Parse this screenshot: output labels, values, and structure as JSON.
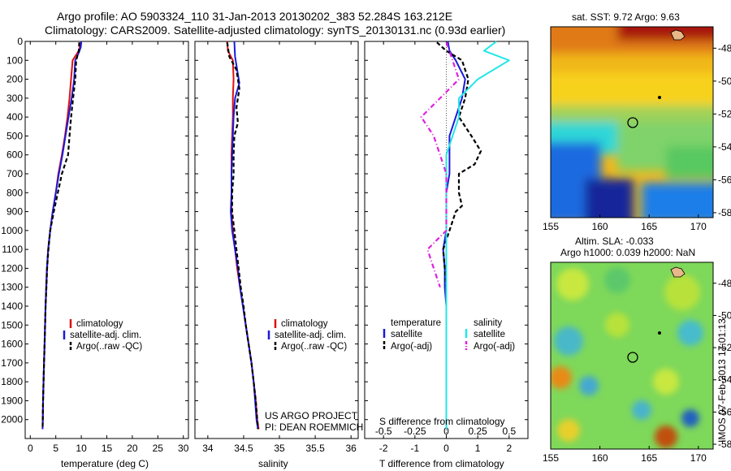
{
  "header": {
    "line1": "Argo profile: AO 5903324_110 31-Jan-2013 20130202_383 52.284S 163.212E",
    "line2": "Climatology: CARS2009. Satellite-adjusted climatology: synTS_20130131.nc (0.93d earlier)"
  },
  "colors": {
    "climatology": "#dd1111",
    "satellite": "#1a1adb",
    "argo": "#000000",
    "salinity_satellite": "#22e6e6",
    "salinity_argo": "#dd22dd"
  },
  "legend_tp": {
    "clim": "climatology",
    "sat": "satellite-adj. clim.",
    "argo": "Argo(..raw -QC)"
  },
  "legend_diff": {
    "temp_header": "temperature",
    "sal_header": "salinity",
    "sat": "satellite",
    "argo": "Argo(-adj)"
  },
  "credits": {
    "line1": "US ARGO PROJECT",
    "line2": "PI: DEAN ROEMMICH"
  },
  "maps": {
    "sst_title": "sat. SST: 9.72 Argo: 9.63",
    "sla_title1": "Altim. SLA: -0.033",
    "sla_title2": "Argo h1000: 0.039 h2000: NaN",
    "stamp": "IMOS 07-Feb-2013 17:01:13",
    "lon_ticks": [
      "155",
      "160",
      "165",
      "170"
    ],
    "lat_ticks": [
      "-48",
      "-50",
      "-52",
      "-54",
      "-56",
      "-58"
    ]
  },
  "chart_data": [
    {
      "type": "line",
      "name": "temperature",
      "xlabel": "temperature (deg C)",
      "xlim": [
        -1,
        31
      ],
      "ylim": [
        0,
        2100
      ],
      "xticks": [
        0,
        5,
        10,
        15,
        20,
        25,
        30
      ],
      "yticks": [
        0,
        100,
        200,
        300,
        400,
        500,
        600,
        700,
        800,
        900,
        1000,
        1100,
        1200,
        1300,
        1400,
        1500,
        1600,
        1700,
        1800,
        1900,
        2000
      ],
      "yaxis_reversed": true,
      "series": [
        {
          "name": "climatology",
          "color_key": "climatology",
          "dash": "solid",
          "points": [
            [
              10.0,
              0
            ],
            [
              9.8,
              20
            ],
            [
              9.5,
              50
            ],
            [
              8.3,
              100
            ],
            [
              8.0,
              200
            ],
            [
              7.7,
              300
            ],
            [
              7.3,
              400
            ],
            [
              6.8,
              500
            ],
            [
              6.2,
              600
            ],
            [
              5.5,
              700
            ],
            [
              5.0,
              800
            ],
            [
              4.4,
              900
            ],
            [
              3.9,
              1000
            ],
            [
              3.5,
              1100
            ],
            [
              3.3,
              1200
            ],
            [
              3.15,
              1300
            ],
            [
              3.0,
              1400
            ],
            [
              2.9,
              1500
            ],
            [
              2.8,
              1600
            ],
            [
              2.7,
              1700
            ],
            [
              2.6,
              1800
            ],
            [
              2.5,
              1900
            ],
            [
              2.45,
              2000
            ],
            [
              2.4,
              2050
            ]
          ]
        },
        {
          "name": "satellite-adj. clim.",
          "color_key": "satellite",
          "dash": "solid",
          "points": [
            [
              10.0,
              0
            ],
            [
              9.9,
              30
            ],
            [
              9.5,
              60
            ],
            [
              8.8,
              100
            ],
            [
              8.6,
              200
            ],
            [
              8.1,
              300
            ],
            [
              7.5,
              400
            ],
            [
              6.9,
              500
            ],
            [
              6.3,
              600
            ],
            [
              5.6,
              700
            ],
            [
              5.0,
              800
            ],
            [
              4.4,
              900
            ],
            [
              3.9,
              1000
            ],
            [
              3.5,
              1100
            ],
            [
              3.25,
              1200
            ],
            [
              3.1,
              1300
            ],
            [
              3.0,
              1400
            ],
            [
              2.9,
              1500
            ],
            [
              2.8,
              1600
            ],
            [
              2.7,
              1700
            ],
            [
              2.6,
              1800
            ],
            [
              2.5,
              1900
            ],
            [
              2.45,
              2000
            ],
            [
              2.4,
              2050
            ]
          ]
        },
        {
          "name": "Argo(..raw -QC)",
          "color_key": "argo",
          "dash": "dash",
          "points": [
            [
              9.6,
              5
            ],
            [
              9.5,
              50
            ],
            [
              9.0,
              100
            ],
            [
              8.8,
              200
            ],
            [
              8.4,
              300
            ],
            [
              8.0,
              400
            ],
            [
              7.7,
              500
            ],
            [
              7.4,
              600
            ],
            [
              6.2,
              700
            ],
            [
              5.4,
              800
            ],
            [
              4.6,
              900
            ],
            [
              3.9,
              1000
            ],
            [
              3.55,
              1100
            ],
            [
              3.3,
              1200
            ],
            [
              3.15,
              1300
            ],
            [
              3.0,
              1400
            ],
            [
              2.9,
              1500
            ],
            [
              2.8,
              1600
            ],
            [
              2.7,
              1700
            ],
            [
              2.6,
              1800
            ],
            [
              2.5,
              1900
            ],
            [
              2.45,
              2000
            ],
            [
              2.4,
              2050
            ]
          ]
        }
      ]
    },
    {
      "type": "line",
      "name": "salinity",
      "xlabel": "salinity",
      "xlim": [
        33.82,
        36.1
      ],
      "ylim": [
        0,
        2100
      ],
      "xticks": [
        34,
        34.5,
        35,
        35.5,
        36
      ],
      "xticklabels": [
        "34",
        "34.5",
        "35",
        "35.5",
        "36"
      ],
      "yaxis_reversed": true,
      "series": [
        {
          "name": "climatology",
          "color_key": "climatology",
          "dash": "solid",
          "points": [
            [
              34.27,
              0
            ],
            [
              34.28,
              50
            ],
            [
              34.35,
              100
            ],
            [
              34.36,
              200
            ],
            [
              34.35,
              300
            ],
            [
              34.35,
              400
            ],
            [
              34.34,
              500
            ],
            [
              34.33,
              600
            ],
            [
              34.33,
              700
            ],
            [
              34.33,
              800
            ],
            [
              34.33,
              900
            ],
            [
              34.35,
              1000
            ],
            [
              34.38,
              1100
            ],
            [
              34.41,
              1200
            ],
            [
              34.45,
              1300
            ],
            [
              34.49,
              1400
            ],
            [
              34.53,
              1500
            ],
            [
              34.57,
              1600
            ],
            [
              34.61,
              1700
            ],
            [
              34.64,
              1800
            ],
            [
              34.67,
              1900
            ],
            [
              34.69,
              2000
            ],
            [
              34.71,
              2050
            ]
          ]
        },
        {
          "name": "satellite-adj. clim.",
          "color_key": "satellite",
          "dash": "solid",
          "points": [
            [
              34.37,
              0
            ],
            [
              34.38,
              80
            ],
            [
              34.41,
              150
            ],
            [
              34.44,
              220
            ],
            [
              34.38,
              300
            ],
            [
              34.36,
              400
            ],
            [
              34.35,
              500
            ],
            [
              34.34,
              600
            ],
            [
              34.33,
              700
            ],
            [
              34.33,
              800
            ],
            [
              34.32,
              900
            ],
            [
              34.34,
              1000
            ],
            [
              34.38,
              1100
            ],
            [
              34.42,
              1200
            ],
            [
              34.45,
              1300
            ],
            [
              34.49,
              1400
            ],
            [
              34.53,
              1500
            ],
            [
              34.57,
              1600
            ],
            [
              34.61,
              1700
            ],
            [
              34.64,
              1800
            ],
            [
              34.66,
              1900
            ],
            [
              34.68,
              2000
            ],
            [
              34.7,
              2050
            ]
          ]
        },
        {
          "name": "Argo(..raw -QC)",
          "color_key": "argo",
          "dash": "dash",
          "points": [
            [
              34.27,
              5
            ],
            [
              34.3,
              80
            ],
            [
              34.4,
              150
            ],
            [
              34.44,
              250
            ],
            [
              34.4,
              350
            ],
            [
              34.42,
              430
            ],
            [
              34.37,
              500
            ],
            [
              34.36,
              600
            ],
            [
              34.36,
              700
            ],
            [
              34.34,
              800
            ],
            [
              34.34,
              900
            ],
            [
              34.37,
              1000
            ],
            [
              34.4,
              1100
            ],
            [
              34.43,
              1200
            ],
            [
              34.46,
              1300
            ],
            [
              34.5,
              1400
            ],
            [
              34.53,
              1500
            ],
            [
              34.57,
              1600
            ],
            [
              34.61,
              1700
            ],
            [
              34.64,
              1800
            ],
            [
              34.67,
              1900
            ],
            [
              34.69,
              2000
            ],
            [
              34.7,
              2050
            ]
          ]
        }
      ]
    },
    {
      "type": "line",
      "name": "difference",
      "xlabel": "T difference from climatology",
      "xlabel2": "S difference from climatology",
      "xlim": [
        -2.6,
        2.6
      ],
      "ylim": [
        0,
        2100
      ],
      "xticks": [
        -2,
        -1,
        0,
        1,
        2
      ],
      "secondary_ticks": [
        -0.5,
        -0.25,
        0,
        0.25,
        0.5
      ],
      "secondary_ticklabels": [
        "-0.5",
        "-0.25",
        "0",
        "0.25",
        "0.5"
      ],
      "yaxis_reversed": true,
      "series": [
        {
          "name": "temperature satellite",
          "color_key": "satellite",
          "dash": "solid",
          "points": [
            [
              0.05,
              0
            ],
            [
              0.1,
              50
            ],
            [
              0.3,
              100
            ],
            [
              0.6,
              200
            ],
            [
              0.5,
              300
            ],
            [
              0.3,
              400
            ],
            [
              0.1,
              500
            ],
            [
              0.1,
              600
            ],
            [
              0.1,
              700
            ],
            [
              0.0,
              800
            ],
            [
              0.0,
              900
            ],
            [
              0.0,
              1000
            ],
            [
              -0.1,
              1100
            ],
            [
              -0.05,
              1200
            ],
            [
              -0.05,
              1300
            ],
            [
              0.0,
              1400
            ],
            [
              0.0,
              1500
            ],
            [
              0.0,
              1600
            ],
            [
              0.0,
              1700
            ],
            [
              0.0,
              1800
            ],
            [
              0.0,
              1900
            ],
            [
              0.0,
              2000
            ],
            [
              0.0,
              2050
            ]
          ]
        },
        {
          "name": "temperature Argo(-adj)",
          "color_key": "argo",
          "dash": "dash",
          "points": [
            [
              -0.3,
              5
            ],
            [
              0.0,
              50
            ],
            [
              0.5,
              100
            ],
            [
              0.7,
              200
            ],
            [
              0.6,
              300
            ],
            [
              0.4,
              400
            ],
            [
              0.8,
              500
            ],
            [
              1.1,
              580
            ],
            [
              0.9,
              650
            ],
            [
              0.4,
              700
            ],
            [
              0.4,
              800
            ],
            [
              0.5,
              870
            ],
            [
              0.3,
              900
            ],
            [
              0.1,
              1000
            ],
            [
              -0.1,
              1100
            ],
            [
              -0.05,
              1200
            ],
            [
              0.0,
              1300
            ]
          ]
        },
        {
          "name": "salinity satellite",
          "color_key": "salinity_satellite",
          "dash": "solid",
          "points": [
            [
              0.4,
              0
            ],
            [
              0.3,
              50
            ],
            [
              0.5,
              100
            ],
            [
              0.25,
              200
            ],
            [
              0.1,
              300
            ],
            [
              0.1,
              400
            ],
            [
              0.05,
              500
            ],
            [
              0.0,
              600
            ],
            [
              0.0,
              700
            ],
            [
              0.0,
              800
            ],
            [
              0.0,
              900
            ],
            [
              0.0,
              1000
            ],
            [
              0.0,
              1100
            ],
            [
              0.0,
              1200
            ],
            [
              0.0,
              1300
            ],
            [
              0.0,
              1400
            ],
            [
              0.0,
              1500
            ],
            [
              0.0,
              1600
            ],
            [
              0.0,
              1700
            ],
            [
              0.0,
              1800
            ],
            [
              0.0,
              1900
            ],
            [
              0.0,
              2000
            ],
            [
              0.0,
              2050
            ]
          ]
        },
        {
          "name": "salinity Argo(-adj)",
          "color_key": "salinity_argo",
          "dash": "dashdot",
          "points": [
            [
              0.0,
              5
            ],
            [
              0.05,
              100
            ],
            [
              0.1,
              200
            ],
            [
              -0.05,
              300
            ],
            [
              -0.2,
              400
            ],
            [
              -0.1,
              500
            ],
            [
              -0.05,
              600
            ],
            [
              0.0,
              700
            ],
            [
              0.0,
              800
            ],
            [
              0.0,
              900
            ],
            [
              0.0,
              1000
            ],
            [
              -0.15,
              1100
            ],
            [
              -0.1,
              1200
            ],
            [
              -0.05,
              1300
            ]
          ]
        }
      ]
    }
  ]
}
